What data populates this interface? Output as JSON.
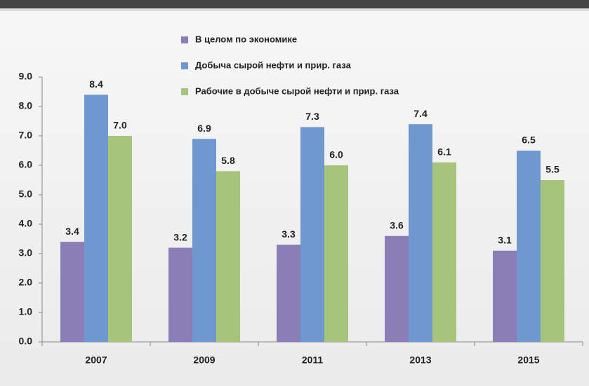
{
  "chart_data": {
    "type": "bar",
    "categories": [
      "2007",
      "2009",
      "2011",
      "2013",
      "2015"
    ],
    "series": [
      {
        "name": "В целом по экономике",
        "color": "#8b7db5",
        "values": [
          3.4,
          3.2,
          3.3,
          3.6,
          3.1
        ],
        "value_labels": [
          "3.4",
          "3.2",
          "3.3",
          "3.6",
          "3.1"
        ]
      },
      {
        "name": "Добыча сырой нефти и прир. газа",
        "color": "#6f98d0",
        "values": [
          8.4,
          6.9,
          7.3,
          7.4,
          6.5
        ],
        "value_labels": [
          "8.4",
          "6.9",
          "7.3",
          "7.4",
          "6.5"
        ]
      },
      {
        "name": "Рабочие в добыче сырой нефти и прир. газа",
        "color": "#a6c47a",
        "values": [
          7.0,
          5.8,
          6.0,
          6.1,
          5.5
        ],
        "value_labels": [
          "7.0",
          "5.8",
          "6.0",
          "6.1",
          "5.5"
        ]
      }
    ],
    "ylim": [
      0,
      9
    ],
    "yticks": [
      {
        "value": 0,
        "label": "0.0"
      },
      {
        "value": 1,
        "label": "1.0"
      },
      {
        "value": 2,
        "label": "2.0"
      },
      {
        "value": 3,
        "label": "3.0"
      },
      {
        "value": 4,
        "label": "4.0"
      },
      {
        "value": 5,
        "label": "5.0"
      },
      {
        "value": 6,
        "label": "6.0"
      },
      {
        "value": 7,
        "label": "7.0"
      },
      {
        "value": 8,
        "label": "8.0"
      },
      {
        "value": 9,
        "label": "9.0"
      }
    ],
    "grid": false,
    "legend": "top"
  }
}
